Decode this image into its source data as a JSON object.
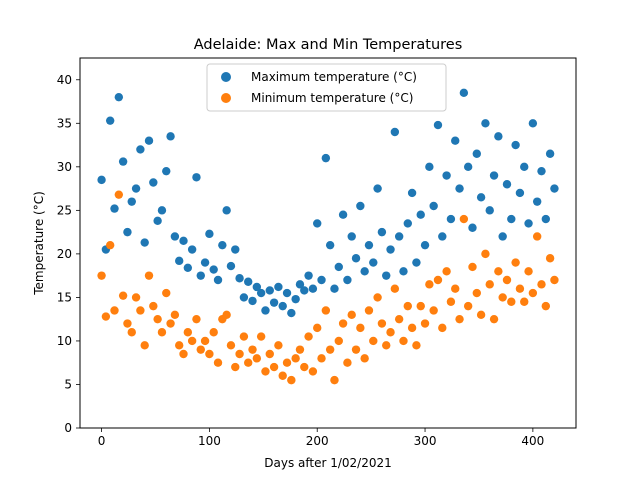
{
  "chart_data": {
    "type": "scatter",
    "title": "Adelaide: Max and Min Temperatures",
    "xlabel": "Days after 1/02/2021",
    "ylabel": "Temperature (°C)",
    "xlim": [
      -20,
      440
    ],
    "ylim": [
      0,
      42.5
    ],
    "xticks": [
      0,
      100,
      200,
      300,
      400
    ],
    "yticks": [
      0,
      5,
      10,
      15,
      20,
      25,
      30,
      35,
      40
    ],
    "grid": false,
    "legend_position": "upper center",
    "series": [
      {
        "name": "Maximum temperature (°C)",
        "color": "#1f77b4",
        "x": [
          0,
          4,
          8,
          12,
          16,
          20,
          24,
          28,
          32,
          36,
          40,
          44,
          48,
          52,
          56,
          60,
          64,
          68,
          72,
          76,
          80,
          84,
          88,
          92,
          96,
          100,
          104,
          108,
          112,
          116,
          120,
          124,
          128,
          132,
          136,
          140,
          144,
          148,
          152,
          156,
          160,
          164,
          168,
          172,
          176,
          180,
          184,
          188,
          192,
          196,
          200,
          204,
          208,
          212,
          216,
          220,
          224,
          228,
          232,
          236,
          240,
          244,
          248,
          252,
          256,
          260,
          264,
          268,
          272,
          276,
          280,
          284,
          288,
          292,
          296,
          300,
          304,
          308,
          312,
          316,
          320,
          324,
          328,
          332,
          336,
          340,
          344,
          348,
          352,
          356,
          360,
          364,
          368,
          372,
          376,
          380,
          384,
          388,
          392,
          396,
          400,
          404,
          408,
          412,
          416,
          420
        ],
        "y": [
          28.5,
          20.5,
          35.3,
          25.2,
          38.0,
          30.6,
          22.5,
          26.0,
          27.5,
          32.0,
          21.3,
          33.0,
          28.2,
          23.8,
          25.0,
          29.5,
          33.5,
          22.0,
          19.2,
          21.5,
          18.4,
          20.5,
          28.8,
          17.5,
          19.0,
          22.3,
          18.2,
          17.0,
          21.0,
          25.0,
          18.6,
          20.5,
          17.2,
          15.0,
          16.8,
          14.6,
          16.2,
          15.5,
          13.5,
          15.8,
          14.4,
          16.2,
          14.0,
          15.5,
          13.2,
          14.8,
          16.5,
          15.8,
          17.5,
          16.0,
          23.5,
          17.0,
          31.0,
          21.0,
          16.0,
          18.5,
          24.5,
          17.0,
          22.0,
          19.5,
          25.5,
          18.0,
          21.0,
          19.0,
          27.5,
          22.5,
          17.5,
          20.5,
          34.0,
          22.0,
          18.0,
          23.5,
          27.0,
          19.0,
          24.5,
          21.0,
          30.0,
          25.5,
          34.8,
          22.0,
          29.0,
          24.0,
          33.0,
          27.5,
          38.5,
          30.0,
          23.0,
          31.5,
          26.5,
          35.0,
          25.0,
          29.0,
          33.5,
          22.0,
          28.0,
          24.0,
          32.5,
          27.0,
          30.0,
          23.5,
          35.0,
          26.0,
          29.5,
          24.0,
          31.5,
          27.5
        ]
      },
      {
        "name": "Minimum temperature (°C)",
        "color": "#ff7f0e",
        "x": [
          0,
          4,
          8,
          12,
          16,
          20,
          24,
          28,
          32,
          36,
          40,
          44,
          48,
          52,
          56,
          60,
          64,
          68,
          72,
          76,
          80,
          84,
          88,
          92,
          96,
          100,
          104,
          108,
          112,
          116,
          120,
          124,
          128,
          132,
          136,
          140,
          144,
          148,
          152,
          156,
          160,
          164,
          168,
          172,
          176,
          180,
          184,
          188,
          192,
          196,
          200,
          204,
          208,
          212,
          216,
          220,
          224,
          228,
          232,
          236,
          240,
          244,
          248,
          252,
          256,
          260,
          264,
          268,
          272,
          276,
          280,
          284,
          288,
          292,
          296,
          300,
          304,
          308,
          312,
          316,
          320,
          324,
          328,
          332,
          336,
          340,
          344,
          348,
          352,
          356,
          360,
          364,
          368,
          372,
          376,
          380,
          384,
          388,
          392,
          396,
          400,
          404,
          408,
          412,
          416,
          420
        ],
        "y": [
          17.5,
          12.8,
          21.0,
          13.5,
          26.8,
          15.2,
          12.0,
          11.0,
          15.0,
          13.5,
          9.5,
          17.5,
          14.0,
          12.5,
          11.0,
          15.5,
          12.0,
          13.0,
          9.5,
          8.5,
          11.0,
          10.0,
          12.5,
          9.0,
          10.0,
          8.5,
          11.0,
          7.5,
          12.5,
          13.0,
          9.5,
          7.0,
          8.5,
          10.5,
          7.5,
          9.0,
          8.0,
          10.5,
          6.5,
          8.5,
          7.0,
          9.5,
          6.0,
          7.5,
          5.5,
          8.0,
          9.0,
          7.0,
          10.5,
          6.5,
          11.5,
          8.0,
          13.5,
          9.0,
          5.5,
          10.0,
          12.0,
          7.5,
          13.0,
          9.0,
          11.5,
          8.0,
          13.5,
          10.0,
          15.0,
          12.0,
          9.5,
          11.0,
          16.0,
          12.5,
          10.0,
          14.0,
          11.5,
          9.5,
          14.0,
          12.0,
          16.5,
          13.5,
          17.0,
          11.5,
          18.0,
          14.5,
          16.0,
          12.5,
          24.0,
          14.0,
          18.5,
          15.5,
          13.0,
          20.0,
          16.5,
          12.5,
          18.0,
          15.0,
          17.0,
          14.5,
          19.0,
          16.0,
          14.5,
          18.0,
          15.5,
          22.0,
          16.5,
          14.0,
          19.5,
          17.0
        ]
      }
    ]
  }
}
